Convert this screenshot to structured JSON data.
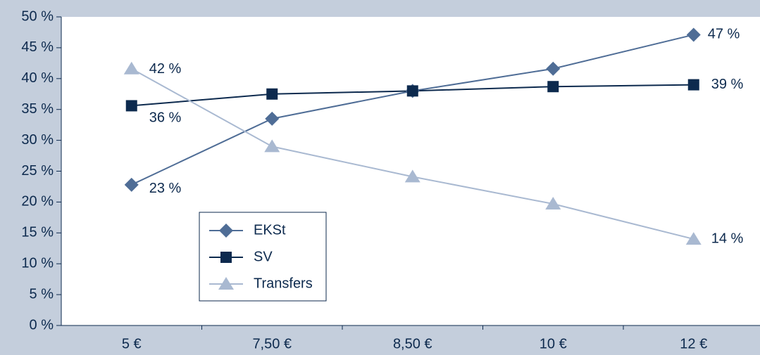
{
  "chart_data": {
    "type": "line",
    "categories": [
      "5 €",
      "7,50 €",
      "8,50 €",
      "10 €",
      "12 €"
    ],
    "series": [
      {
        "name": "EKSt",
        "color": "#4f6d96",
        "marker": "diamond",
        "values": [
          22.8,
          33.5,
          38.0,
          41.6,
          47.1
        ],
        "value_labels": [
          "23 %",
          null,
          null,
          null,
          "47 %"
        ]
      },
      {
        "name": "SV",
        "color": "#0d2a4e",
        "marker": "square",
        "values": [
          35.6,
          37.5,
          38.0,
          38.7,
          39.0
        ],
        "value_labels": [
          "36 %",
          null,
          null,
          null,
          "39 %"
        ]
      },
      {
        "name": "Transfers",
        "color": "#a9b9d1",
        "marker": "triangle",
        "values": [
          41.6,
          29.0,
          24.1,
          19.7,
          14.0
        ],
        "value_labels": [
          "42 %",
          null,
          null,
          null,
          "14 %"
        ]
      }
    ],
    "ylim": [
      0,
      50
    ],
    "yticks": [
      {
        "value": 0,
        "label": "0 %"
      },
      {
        "value": 5,
        "label": "5 %"
      },
      {
        "value": 10,
        "label": "10 %"
      },
      {
        "value": 15,
        "label": "15 %"
      },
      {
        "value": 20,
        "label": "20 %"
      },
      {
        "value": 25,
        "label": "25 %"
      },
      {
        "value": 30,
        "label": "30 %"
      },
      {
        "value": 35,
        "label": "35 %"
      },
      {
        "value": 40,
        "label": "40 %"
      },
      {
        "value": 45,
        "label": "45 %"
      },
      {
        "value": 50,
        "label": "50 %"
      }
    ],
    "legend": "lower-left"
  }
}
